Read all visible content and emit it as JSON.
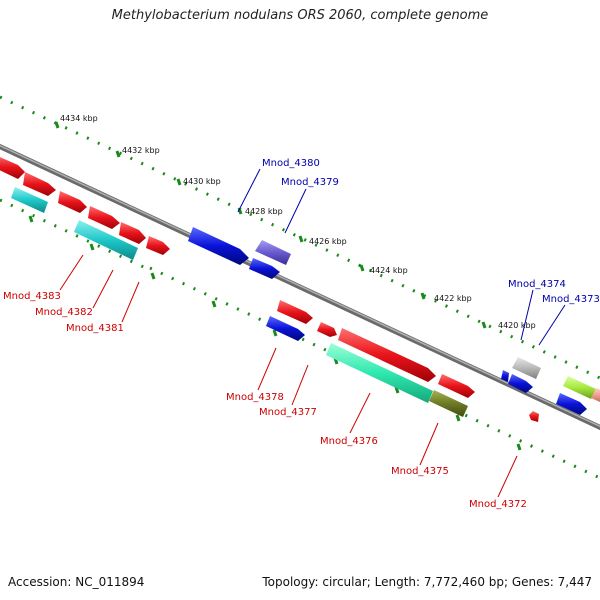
{
  "title": "Methylobacterium nodulans ORS 2060, complete genome",
  "footer": {
    "accession": "Accession: NC_011894",
    "topology": "Topology: circular; Length: 7,772,460 bp; Genes: 7,447"
  },
  "scale_labels": [
    "4434 kbp",
    "4432 kbp",
    "4430 kbp",
    "4428 kbp",
    "4426 kbp",
    "4424 kbp",
    "4422 kbp",
    "4420 kbp"
  ],
  "gene_labels": {
    "top": [
      "Mnod_4380",
      "Mnod_4379",
      "Mnod_4374",
      "Mnod_4373"
    ],
    "bottom": [
      "Mnod_4383",
      "Mnod_4382",
      "Mnod_4381",
      "Mnod_4378",
      "Mnod_4377",
      "Mnod_4376",
      "Mnod_4375",
      "Mnod_4372"
    ]
  },
  "colors": {
    "red_gene": "#e8141a",
    "blue_gene": "#0a12d8",
    "cyan_gene": "#1ec8c8",
    "teal_gene": "#2ee8b0",
    "olive_gene": "#6e7a24",
    "purple_gene": "#6a5ad0",
    "grey_gene": "#b8b8b8",
    "green_gene": "#a8e840",
    "label_red": "#cc0000",
    "label_blue": "#0000aa",
    "tick_green": "#1a8a1a",
    "backbone": "#888888"
  }
}
